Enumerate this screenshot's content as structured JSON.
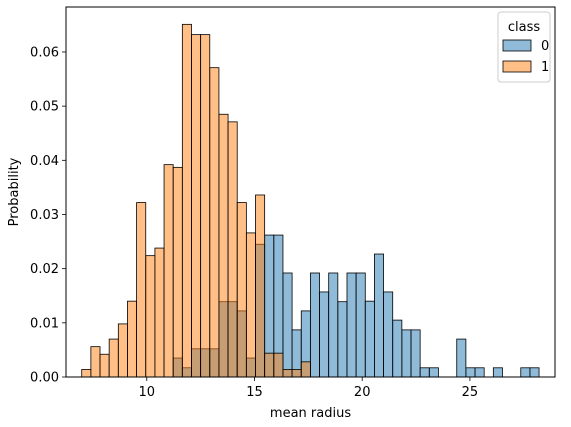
{
  "chart_data": {
    "type": "histogram",
    "xlabel": "mean radius",
    "ylabel": "Probability",
    "xlim": [
      6.25,
      28.95
    ],
    "ylim": [
      0,
      0.0683
    ],
    "xticks": [
      10,
      15,
      20,
      25
    ],
    "yticks": [
      0.0,
      0.01,
      0.02,
      0.03,
      0.04,
      0.05,
      0.06
    ],
    "ytick_labels": [
      "0.00",
      "0.01",
      "0.02",
      "0.03",
      "0.04",
      "0.05",
      "0.06"
    ],
    "bin_start": 6.98,
    "bin_width": 0.4246,
    "num_bins": 50,
    "grid": false,
    "legend": {
      "title": "class",
      "position": "top-right",
      "entries": [
        {
          "label": "0",
          "color": "#1f77b4"
        },
        {
          "label": "1",
          "color": "#ff7f0e"
        }
      ]
    },
    "series": [
      {
        "name": "0",
        "color": "#1f77b4",
        "values": [
          0,
          0,
          0,
          0,
          0,
          0,
          0,
          0,
          0,
          0,
          0.0035,
          0.0017,
          0.0052,
          0.0052,
          0.0052,
          0.0139,
          0.0139,
          0.0122,
          0.0035,
          0.0245,
          0.0262,
          0.0262,
          0.0192,
          0.0087,
          0.0122,
          0.0192,
          0.0157,
          0.0192,
          0.0139,
          0.0192,
          0.0192,
          0.014,
          0.0227,
          0.0157,
          0.0105,
          0.0087,
          0.0087,
          0.0017,
          0.0017,
          0,
          0,
          0.007,
          0.0017,
          0.0017,
          0,
          0.0017,
          0,
          0,
          0.0017,
          0.0017
        ]
      },
      {
        "name": "1",
        "color": "#ff7f0e",
        "values": [
          0.0014,
          0.0056,
          0.0042,
          0.007,
          0.0098,
          0.014,
          0.0322,
          0.0224,
          0.0238,
          0.0392,
          0.0387,
          0.0651,
          0.0632,
          0.0632,
          0.0571,
          0.0485,
          0.0471,
          0.0322,
          0.0266,
          0.0336,
          0.0044,
          0.0044,
          0.0014,
          0.0014,
          0.0028,
          0,
          0,
          0,
          0,
          0,
          0,
          0,
          0,
          0,
          0,
          0,
          0,
          0,
          0,
          0,
          0,
          0,
          0,
          0,
          0,
          0,
          0,
          0,
          0,
          0
        ]
      }
    ]
  }
}
